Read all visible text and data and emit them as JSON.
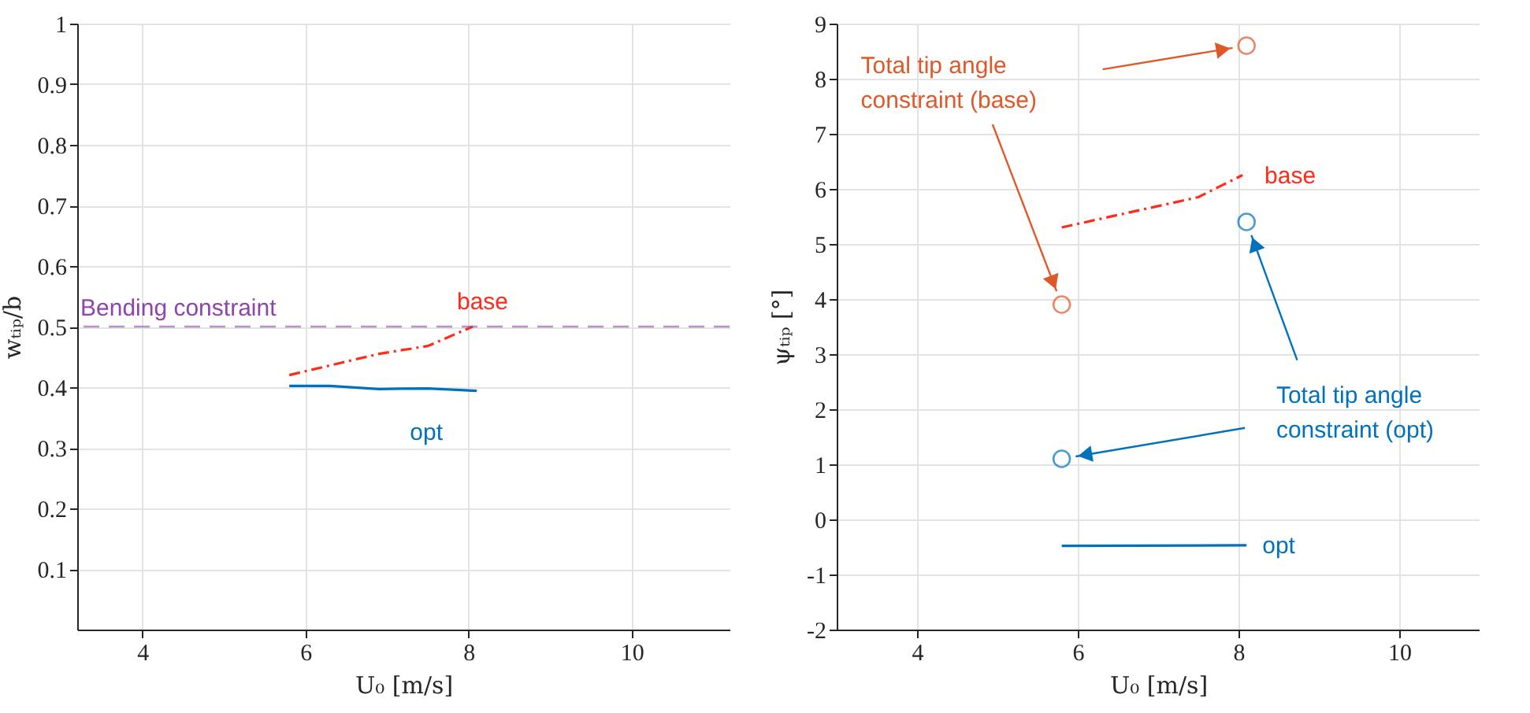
{
  "chart_data": [
    {
      "type": "line",
      "xlabel": "U₀ [m/s]",
      "ylabel": "wₜᵢₚ/b",
      "xlim": [
        3.2,
        11.2
      ],
      "xticks": [
        4,
        6,
        8,
        10
      ],
      "ylim": [
        0,
        1
      ],
      "yticks": [
        0.1,
        0.2,
        0.3,
        0.4,
        0.5,
        0.6,
        0.7,
        0.8,
        0.9,
        1
      ],
      "grid": true,
      "series": [
        {
          "name": "base",
          "color": "#ff2a1a",
          "line_style": "dashdot",
          "marker": "none",
          "x": [
            5.8,
            6.9,
            7.5,
            8.05
          ],
          "values": [
            0.42,
            0.455,
            0.468,
            0.5
          ]
        },
        {
          "name": "opt",
          "color": "#0072bd",
          "line_style": "solid",
          "marker": "none",
          "x": [
            5.8,
            6.3,
            6.9,
            7.5,
            8.1
          ],
          "values": [
            0.402,
            0.402,
            0.397,
            0.398,
            0.394
          ]
        }
      ],
      "ref_lines": [
        {
          "axis": "y",
          "value": 0.5,
          "label": "Bending constraint",
          "color": "#8e44ad",
          "line_style": "dashed"
        }
      ]
    },
    {
      "type": "line",
      "xlabel": "U₀ [m/s]",
      "ylabel": "ψₜᵢₚ [°]",
      "xlim": [
        3,
        11
      ],
      "xticks": [
        4,
        6,
        8,
        10
      ],
      "ylim": [
        -2,
        9
      ],
      "yticks": [
        -2,
        -1,
        0,
        1,
        2,
        3,
        4,
        5,
        6,
        7,
        8,
        9
      ],
      "grid": true,
      "series": [
        {
          "name": "base",
          "color": "#ff2a1a",
          "line_style": "dashdot",
          "marker": "none",
          "x": [
            5.8,
            7.5,
            8.05
          ],
          "values": [
            5.3,
            5.85,
            6.25
          ]
        },
        {
          "name": "opt",
          "color": "#0072bd",
          "line_style": "solid",
          "marker": "none",
          "x": [
            5.8,
            8.1
          ],
          "values": [
            -0.48,
            -0.47
          ]
        },
        {
          "name": "Total tip angle constraint (base)",
          "type": "scatter",
          "color": "#e0582a",
          "marker": "circle",
          "x": [
            5.8,
            8.1
          ],
          "values": [
            3.9,
            8.6
          ]
        },
        {
          "name": "Total tip angle constraint (opt)",
          "type": "scatter",
          "color": "#0072bd",
          "marker": "circle",
          "x": [
            5.8,
            8.1
          ],
          "values": [
            1.1,
            5.4
          ]
        }
      ]
    }
  ]
}
